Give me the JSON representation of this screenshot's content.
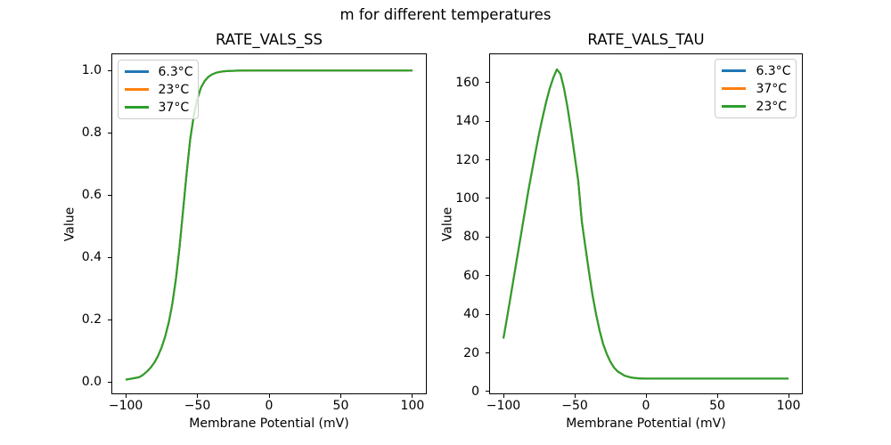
{
  "figure": {
    "title": "m for different temperatures",
    "background": "#ffffff",
    "text_color": "#000000",
    "palette": {
      "blue": "#1f77b4",
      "orange": "#ff7f0e",
      "green": "#2ca02c"
    }
  },
  "chart_data": [
    {
      "type": "line",
      "title": "RATE_VALS_SS",
      "xlabel": "Membrane Potential (mV)",
      "ylabel": "Value",
      "xlim": [
        -110,
        110
      ],
      "ylim": [
        -0.04,
        1.055
      ],
      "grid": false,
      "xticks": {
        "values": [
          -100,
          -50,
          0,
          50,
          100
        ],
        "labels": [
          "−100",
          "−50",
          "0",
          "50",
          "100"
        ]
      },
      "yticks": {
        "values": [
          0.0,
          0.2,
          0.4,
          0.6,
          0.8,
          1.0
        ],
        "labels": [
          "0.0",
          "0.2",
          "0.4",
          "0.6",
          "0.8",
          "1.0"
        ]
      },
      "legend": {
        "location": "upper left",
        "entries": [
          {
            "label": "6.3°C",
            "color": "#1f77b4"
          },
          {
            "label": "23°C",
            "color": "#ff7f0e"
          },
          {
            "label": "37°C",
            "color": "#2ca02c"
          }
        ]
      },
      "series": [
        {
          "label": "6.3°C",
          "color": "#1f77b4"
        },
        {
          "label": "23°C",
          "color": "#ff7f0e"
        },
        {
          "label": "37°C",
          "color": "#2ca02c"
        }
      ],
      "x": [
        -100,
        -97.5,
        -95,
        -92.5,
        -90,
        -87.5,
        -85,
        -82.5,
        -80,
        -77.5,
        -75,
        -72.5,
        -70,
        -67.5,
        -65,
        -62.5,
        -60,
        -57.5,
        -55,
        -52.5,
        -50,
        -47.5,
        -45,
        -42.5,
        -40,
        -37.5,
        -35,
        -32.5,
        -30,
        -27.5,
        -25,
        -22.5,
        -20,
        -15,
        -10,
        -5,
        0,
        10,
        20,
        30,
        40,
        50,
        60,
        70,
        80,
        90,
        100
      ],
      "y_shared": [
        0.007,
        0.009,
        0.011,
        0.013,
        0.016,
        0.024,
        0.034,
        0.046,
        0.062,
        0.083,
        0.11,
        0.145,
        0.19,
        0.25,
        0.33,
        0.43,
        0.55,
        0.67,
        0.78,
        0.855,
        0.91,
        0.945,
        0.966,
        0.979,
        0.987,
        0.992,
        0.995,
        0.997,
        0.998,
        0.9987,
        0.9992,
        0.9995,
        0.9997,
        0.9999,
        1.0,
        1.0,
        1.0,
        1.0,
        1.0,
        1.0,
        1.0,
        1.0,
        1.0,
        1.0,
        1.0,
        1.0,
        1.0
      ]
    },
    {
      "type": "line",
      "title": "RATE_VALS_TAU",
      "xlabel": "Membrane Potential (mV)",
      "ylabel": "Value",
      "xlim": [
        -110,
        110
      ],
      "ylim": [
        -1.4,
        175.1
      ],
      "grid": false,
      "xticks": {
        "values": [
          -100,
          -50,
          0,
          50,
          100
        ],
        "labels": [
          "−100",
          "−50",
          "0",
          "50",
          "100"
        ]
      },
      "yticks": {
        "values": [
          0,
          20,
          40,
          60,
          80,
          100,
          120,
          140,
          160
        ],
        "labels": [
          "0",
          "20",
          "40",
          "60",
          "80",
          "100",
          "120",
          "140",
          "160"
        ]
      },
      "legend": {
        "location": "upper right",
        "entries": [
          {
            "label": "6.3°C",
            "color": "#1f77b4"
          },
          {
            "label": "37°C",
            "color": "#ff7f0e"
          },
          {
            "label": "23°C",
            "color": "#2ca02c"
          }
        ]
      },
      "series": [
        {
          "label": "6.3°C",
          "color": "#1f77b4"
        },
        {
          "label": "37°C",
          "color": "#ff7f0e"
        },
        {
          "label": "23°C",
          "color": "#2ca02c"
        }
      ],
      "x": [
        -100,
        -97.5,
        -95,
        -92.5,
        -90,
        -87.5,
        -85,
        -82.5,
        -80,
        -77.5,
        -75,
        -72.5,
        -70,
        -67.5,
        -65,
        -62.5,
        -60,
        -57.5,
        -55,
        -52.5,
        -50,
        -47.5,
        -45,
        -42.5,
        -40,
        -37.5,
        -35,
        -32.5,
        -30,
        -27.5,
        -25,
        -22.5,
        -20,
        -15,
        -10,
        -5,
        0,
        10,
        20,
        30,
        40,
        50,
        60,
        70,
        80,
        90,
        100
      ],
      "y_shared": [
        27.5,
        38,
        49,
        60,
        71,
        82,
        93,
        104,
        114,
        124,
        133.5,
        142,
        150,
        157,
        162.5,
        166.8,
        164.5,
        157,
        147,
        135,
        122,
        109,
        88,
        75,
        62,
        50,
        40,
        31.5,
        24.5,
        19.5,
        15.5,
        12.5,
        10.5,
        8.2,
        7.2,
        6.8,
        6.7,
        6.7,
        6.7,
        6.7,
        6.7,
        6.7,
        6.7,
        6.7,
        6.7,
        6.7,
        6.7
      ]
    }
  ]
}
